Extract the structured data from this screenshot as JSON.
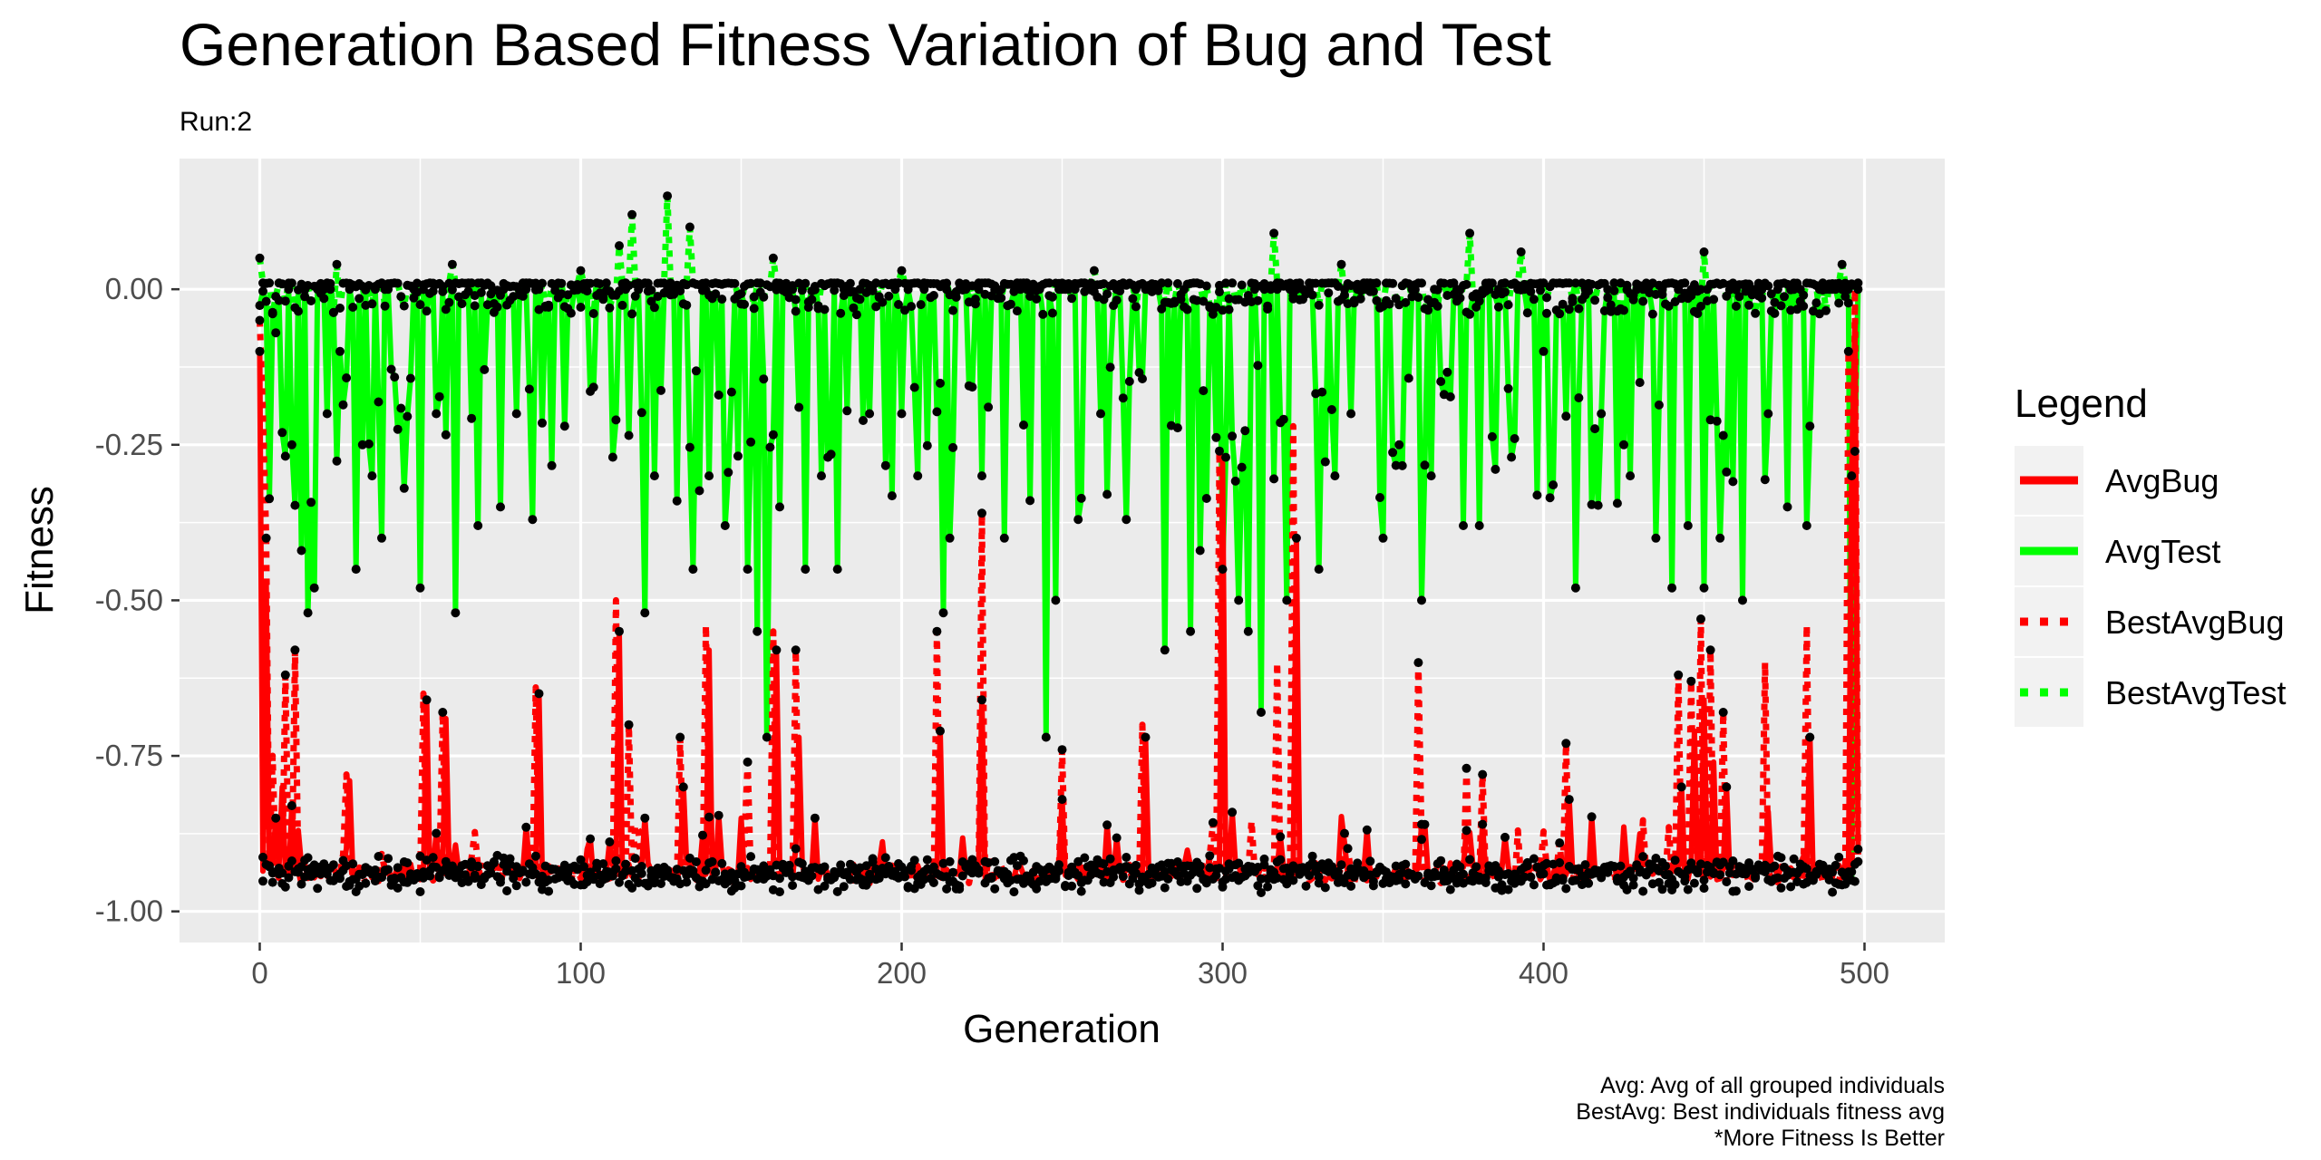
{
  "chart_data": {
    "type": "line",
    "title": "Generation Based Fitness Variation of Bug and Test",
    "subtitle": "Run:2",
    "xlabel": "Generation",
    "ylabel": "Fitness",
    "xlim": [
      -25,
      525
    ],
    "ylim": [
      -1.05,
      0.21
    ],
    "x_ticks": [
      0,
      100,
      200,
      300,
      400,
      500
    ],
    "y_ticks": [
      0.0,
      -0.25,
      -0.5,
      -0.75,
      -1.0
    ],
    "x_tick_labels": [
      "0",
      "100",
      "200",
      "300",
      "400",
      "500"
    ],
    "y_tick_labels": [
      "0.00",
      "-0.25",
      "-0.50",
      "-0.75",
      "-1.00"
    ],
    "grid": true,
    "points_shown": true,
    "point_color": "#000000",
    "legend": {
      "title": "Legend",
      "placement": "right",
      "entries": [
        {
          "label": "AvgBug",
          "color": "#ff0000",
          "style": "solid"
        },
        {
          "label": "AvgTest",
          "color": "#00ff00",
          "style": "solid"
        },
        {
          "label": "BestAvgBug",
          "color": "#ff0000",
          "style": "dotted"
        },
        {
          "label": "BestAvgTest",
          "color": "#00ff00",
          "style": "dotted"
        }
      ]
    },
    "caption": [
      "Avg: Avg of all grouped individuals",
      "BestAvg: Best individuals fitness avg",
      "*More Fitness Is Better"
    ],
    "x_domain": [
      0,
      498
    ],
    "series": [
      {
        "name": "AvgBug",
        "color": "#ff0000",
        "baseline": -0.935,
        "spikes": [
          [
            0,
            -0.1
          ],
          [
            2,
            -0.47
          ],
          [
            5,
            -0.85
          ],
          [
            7,
            -0.8
          ],
          [
            10,
            -0.83
          ],
          [
            12,
            -0.87
          ],
          [
            28,
            -0.79
          ],
          [
            52,
            -0.66
          ],
          [
            58,
            -0.69
          ],
          [
            87,
            -0.65
          ],
          [
            112,
            -0.55
          ],
          [
            120,
            -0.85
          ],
          [
            132,
            -0.8
          ],
          [
            140,
            -0.58
          ],
          [
            150,
            -0.85
          ],
          [
            161,
            -0.58
          ],
          [
            168,
            -0.72
          ],
          [
            173,
            -0.85
          ],
          [
            212,
            -0.71
          ],
          [
            225,
            -0.66
          ],
          [
            250,
            -0.82
          ],
          [
            276,
            -0.72
          ],
          [
            300,
            -0.28
          ],
          [
            318,
            -0.88
          ],
          [
            323,
            -0.4
          ],
          [
            362,
            -0.86
          ],
          [
            376,
            -0.87
          ],
          [
            381,
            -0.86
          ],
          [
            408,
            -0.82
          ],
          [
            443,
            -0.8
          ],
          [
            447,
            -0.71
          ],
          [
            450,
            -0.66
          ],
          [
            453,
            -0.76
          ],
          [
            457,
            -0.8
          ],
          [
            470,
            -0.84
          ],
          [
            483,
            -0.72
          ],
          [
            496,
            -0.3
          ],
          [
            497,
            -0.05
          ],
          [
            498,
            -0.9
          ]
        ]
      },
      {
        "name": "AvgTest",
        "color": "#00ff00",
        "baseline": 0.0,
        "spikes": [
          [
            5,
            -0.07
          ],
          [
            10,
            -0.25
          ],
          [
            13,
            -0.42
          ],
          [
            15,
            -0.52
          ],
          [
            17,
            -0.48
          ],
          [
            21,
            -0.2
          ],
          [
            25,
            -0.1
          ],
          [
            30,
            -0.45
          ],
          [
            32,
            -0.25
          ],
          [
            35,
            -0.3
          ],
          [
            38,
            -0.4
          ],
          [
            45,
            -0.32
          ],
          [
            50,
            -0.48
          ],
          [
            55,
            -0.2
          ],
          [
            61,
            -0.52
          ],
          [
            68,
            -0.38
          ],
          [
            75,
            -0.35
          ],
          [
            80,
            -0.2
          ],
          [
            85,
            -0.37
          ],
          [
            95,
            -0.22
          ],
          [
            110,
            -0.27
          ],
          [
            120,
            -0.52
          ],
          [
            123,
            -0.3
          ],
          [
            135,
            -0.45
          ],
          [
            140,
            -0.3
          ],
          [
            145,
            -0.38
          ],
          [
            152,
            -0.45
          ],
          [
            155,
            -0.55
          ],
          [
            158,
            -0.72
          ],
          [
            162,
            -0.35
          ],
          [
            170,
            -0.45
          ],
          [
            175,
            -0.3
          ],
          [
            180,
            -0.45
          ],
          [
            190,
            -0.2
          ],
          [
            200,
            -0.2
          ],
          [
            205,
            -0.3
          ],
          [
            213,
            -0.52
          ],
          [
            215,
            -0.4
          ],
          [
            225,
            -0.3
          ],
          [
            232,
            -0.4
          ],
          [
            245,
            -0.72
          ],
          [
            248,
            -0.5
          ],
          [
            255,
            -0.37
          ],
          [
            262,
            -0.2
          ],
          [
            270,
            -0.37
          ],
          [
            282,
            -0.58
          ],
          [
            290,
            -0.55
          ],
          [
            293,
            -0.42
          ],
          [
            300,
            -0.45
          ],
          [
            305,
            -0.5
          ],
          [
            308,
            -0.55
          ],
          [
            312,
            -0.68
          ],
          [
            320,
            -0.5
          ],
          [
            330,
            -0.45
          ],
          [
            335,
            -0.3
          ],
          [
            340,
            -0.2
          ],
          [
            350,
            -0.4
          ],
          [
            355,
            -0.25
          ],
          [
            362,
            -0.5
          ],
          [
            365,
            -0.3
          ],
          [
            375,
            -0.38
          ],
          [
            380,
            -0.38
          ],
          [
            390,
            -0.27
          ],
          [
            400,
            -0.1
          ],
          [
            410,
            -0.48
          ],
          [
            418,
            -0.2
          ],
          [
            425,
            -0.25
          ],
          [
            435,
            -0.4
          ],
          [
            440,
            -0.48
          ],
          [
            445,
            -0.38
          ],
          [
            450,
            -0.48
          ],
          [
            455,
            -0.4
          ],
          [
            462,
            -0.5
          ],
          [
            470,
            -0.2
          ],
          [
            476,
            -0.35
          ],
          [
            482,
            -0.38
          ],
          [
            496,
            -0.95
          ],
          [
            498,
            0.0
          ]
        ]
      },
      {
        "name": "BestAvgBug",
        "color": "#ff0000",
        "baseline": -0.94,
        "spikes": [
          [
            0,
            -0.05
          ],
          [
            1,
            -0.2
          ],
          [
            2,
            -0.4
          ],
          [
            4,
            -0.75
          ],
          [
            8,
            -0.62
          ],
          [
            11,
            -0.58
          ],
          [
            27,
            -0.78
          ],
          [
            51,
            -0.65
          ],
          [
            57,
            -0.68
          ],
          [
            86,
            -0.64
          ],
          [
            111,
            -0.5
          ],
          [
            115,
            -0.7
          ],
          [
            131,
            -0.72
          ],
          [
            139,
            -0.54
          ],
          [
            152,
            -0.76
          ],
          [
            160,
            -0.55
          ],
          [
            167,
            -0.58
          ],
          [
            211,
            -0.55
          ],
          [
            225,
            -0.36
          ],
          [
            250,
            -0.74
          ],
          [
            275,
            -0.7
          ],
          [
            299,
            -0.26
          ],
          [
            317,
            -0.6
          ],
          [
            322,
            -0.22
          ],
          [
            361,
            -0.6
          ],
          [
            376,
            -0.77
          ],
          [
            381,
            -0.78
          ],
          [
            392,
            -0.87
          ],
          [
            407,
            -0.73
          ],
          [
            442,
            -0.62
          ],
          [
            446,
            -0.63
          ],
          [
            449,
            -0.53
          ],
          [
            452,
            -0.58
          ],
          [
            456,
            -0.68
          ],
          [
            469,
            -0.6
          ],
          [
            482,
            -0.54
          ],
          [
            495,
            -0.1
          ],
          [
            497,
            0.0
          ],
          [
            498,
            -0.92
          ]
        ]
      },
      {
        "name": "BestAvgTest",
        "color": "#00ff00",
        "baseline": 0.01,
        "spikes": [
          [
            0,
            0.05
          ],
          [
            24,
            0.04
          ],
          [
            60,
            0.04
          ],
          [
            100,
            0.03
          ],
          [
            112,
            0.07
          ],
          [
            116,
            0.12
          ],
          [
            127,
            0.15
          ],
          [
            134,
            0.1
          ],
          [
            160,
            0.05
          ],
          [
            200,
            0.03
          ],
          [
            260,
            0.03
          ],
          [
            316,
            0.09
          ],
          [
            337,
            0.04
          ],
          [
            377,
            0.09
          ],
          [
            393,
            0.06
          ],
          [
            450,
            0.06
          ],
          [
            493,
            0.04
          ]
        ]
      }
    ],
    "point_series": [
      {
        "base": -0.945,
        "ref": "AvgBug"
      },
      {
        "base": -0.935,
        "ref": "BestAvgBug"
      },
      {
        "base": -0.01,
        "ref": "AvgTest"
      },
      {
        "base": 0.005,
        "ref": "BestAvgTest"
      }
    ]
  }
}
